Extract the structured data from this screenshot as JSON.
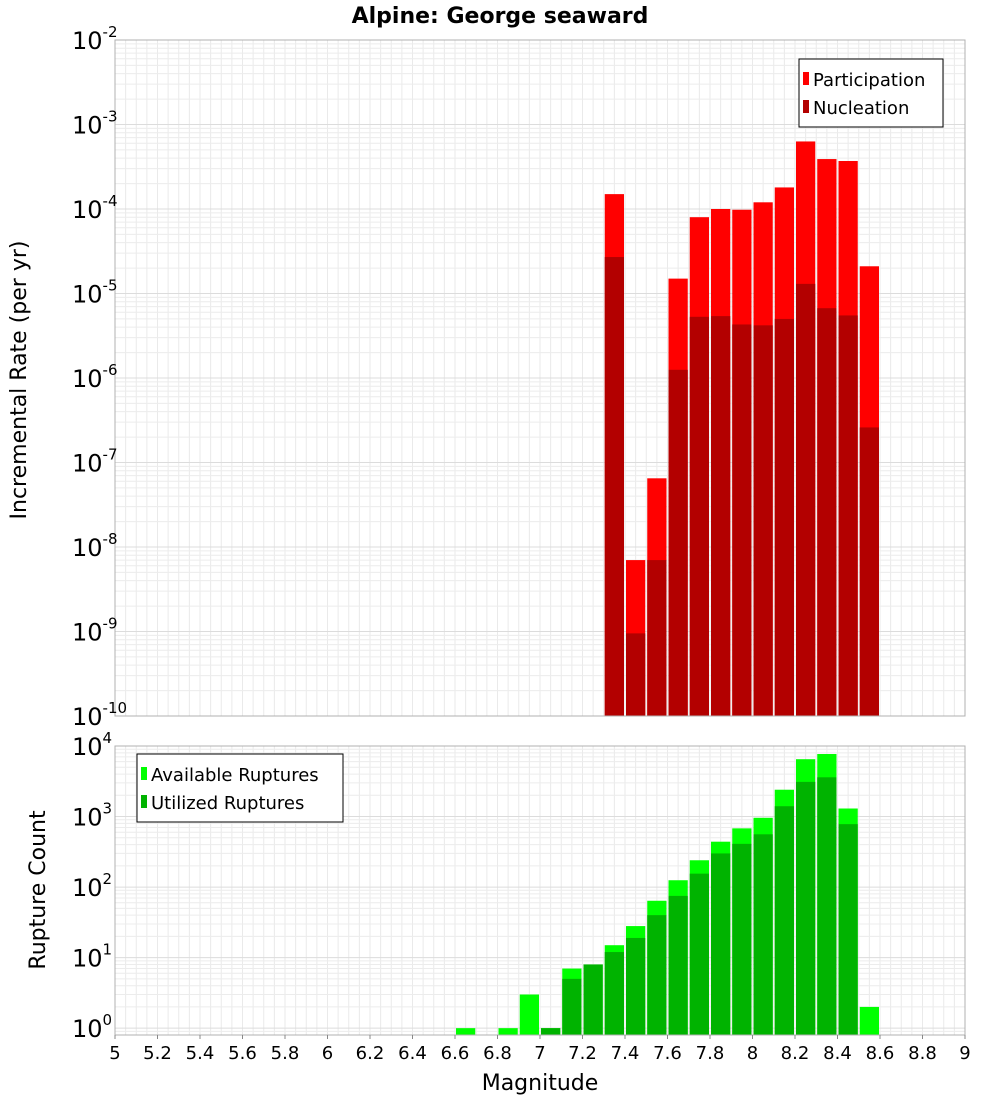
{
  "chart_data": [
    {
      "type": "bar",
      "title": "Alpine: George seaward",
      "xlabel": "Magnitude",
      "ylabel": "Incremental Rate (per yr)",
      "yscale": "log",
      "xlim": [
        5,
        9
      ],
      "ylim": [
        1e-10,
        0.01
      ],
      "grid": true,
      "legend_position": "top-right",
      "bin_width": 0.1,
      "series": [
        {
          "name": "Participation",
          "color": "#ff0000",
          "x": [
            7.35,
            7.45,
            7.55,
            7.65,
            7.75,
            7.85,
            7.95,
            8.05,
            8.15,
            8.25,
            8.35,
            8.45,
            8.55
          ],
          "values": [
            0.00015,
            7e-09,
            6.5e-08,
            1.5e-05,
            8e-05,
            0.0001,
            9.8e-05,
            0.00012,
            0.00018,
            0.00063,
            0.00039,
            0.00037,
            2.1e-05
          ]
        },
        {
          "name": "Nucleation",
          "color": "#b30000",
          "x": [
            7.35,
            7.45,
            7.55,
            7.65,
            7.75,
            7.85,
            7.95,
            8.05,
            8.15,
            8.25,
            8.35,
            8.45,
            8.55
          ],
          "values": [
            2.7e-05,
            9.5e-10,
            7e-09,
            1.25e-06,
            5.3e-06,
            5.4e-06,
            4.3e-06,
            4.2e-06,
            5e-06,
            1.3e-05,
            6.7e-06,
            5.5e-06,
            2.6e-07
          ]
        }
      ],
      "y_ticks": [
        {
          "mant": "10",
          "exp": "-10"
        },
        {
          "mant": "10",
          "exp": "-9"
        },
        {
          "mant": "10",
          "exp": "-8"
        },
        {
          "mant": "10",
          "exp": "-7"
        },
        {
          "mant": "10",
          "exp": "-6"
        },
        {
          "mant": "10",
          "exp": "-5"
        },
        {
          "mant": "10",
          "exp": "-4"
        },
        {
          "mant": "10",
          "exp": "-3"
        },
        {
          "mant": "10",
          "exp": "-2"
        }
      ]
    },
    {
      "type": "bar",
      "xlabel": "Magnitude",
      "ylabel": "Rupture Count",
      "yscale": "log",
      "xlim": [
        5,
        9
      ],
      "ylim": [
        0.8,
        10000
      ],
      "grid": true,
      "legend_position": "top-left",
      "bin_width": 0.1,
      "series": [
        {
          "name": "Available Ruptures",
          "color": "#00ff00",
          "x": [
            6.65,
            6.85,
            6.95,
            7.05,
            7.15,
            7.25,
            7.35,
            7.45,
            7.55,
            7.65,
            7.75,
            7.85,
            7.95,
            8.05,
            8.15,
            8.25,
            8.35,
            8.45,
            8.55
          ],
          "values": [
            1,
            1,
            3,
            1,
            7,
            8,
            15,
            28,
            64,
            125,
            240,
            440,
            680,
            960,
            2400,
            6500,
            7700,
            1300,
            2
          ]
        },
        {
          "name": "Utilized Ruptures",
          "color": "#00b300",
          "x": [
            7.05,
            7.15,
            7.25,
            7.35,
            7.45,
            7.55,
            7.65,
            7.75,
            7.85,
            7.95,
            8.05,
            8.15,
            8.25,
            8.35,
            8.45
          ],
          "values": [
            1,
            5,
            8,
            12,
            19,
            40,
            75,
            155,
            300,
            410,
            560,
            1400,
            3100,
            3600,
            780
          ]
        }
      ],
      "x_ticks": [
        "5",
        "5.2",
        "5.4",
        "5.6",
        "5.8",
        "6",
        "6.2",
        "6.4",
        "6.6",
        "6.8",
        "7",
        "7.2",
        "7.4",
        "7.6",
        "7.8",
        "8",
        "8.2",
        "8.4",
        "8.6",
        "8.8",
        "9"
      ],
      "y_ticks": [
        {
          "mant": "10",
          "exp": "0"
        },
        {
          "mant": "10",
          "exp": "1"
        },
        {
          "mant": "10",
          "exp": "2"
        },
        {
          "mant": "10",
          "exp": "3"
        },
        {
          "mant": "10",
          "exp": "4"
        }
      ]
    }
  ]
}
